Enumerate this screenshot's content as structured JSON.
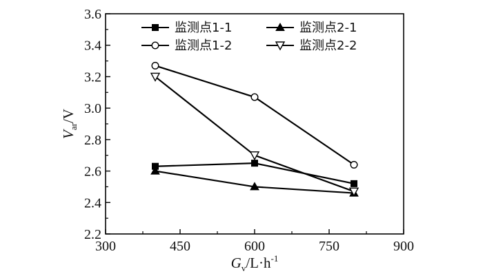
{
  "chart_data": {
    "type": "line",
    "x": [
      400,
      600,
      800
    ],
    "series": [
      {
        "name": "监测点1-1",
        "marker": "filled-square",
        "values": [
          2.63,
          2.65,
          2.52
        ]
      },
      {
        "name": "监测点2-1",
        "marker": "filled-triangle",
        "values": [
          2.6,
          2.5,
          2.46
        ]
      },
      {
        "name": "监测点1-2",
        "marker": "open-circle",
        "values": [
          3.27,
          3.07,
          2.64
        ]
      },
      {
        "name": "监测点2-2",
        "marker": "open-triangle-down",
        "values": [
          3.2,
          2.7,
          2.47
        ]
      }
    ],
    "xlim": [
      300,
      900
    ],
    "ylim": [
      2.2,
      3.6
    ],
    "xticks": [
      "300",
      "450",
      "600",
      "750",
      "900"
    ],
    "yticks": [
      "2.2",
      "2.4",
      "2.6",
      "2.8",
      "3.0",
      "3.2",
      "3.4",
      "3.6"
    ],
    "xlabel": {
      "main": "G",
      "sub": "v",
      "rest": "/L·h",
      "sup": "-1"
    },
    "ylabel": {
      "main": "V",
      "sub": "ar",
      "rest": "/V"
    },
    "legend_position": "top",
    "grid": false,
    "line_color": "#000000"
  }
}
